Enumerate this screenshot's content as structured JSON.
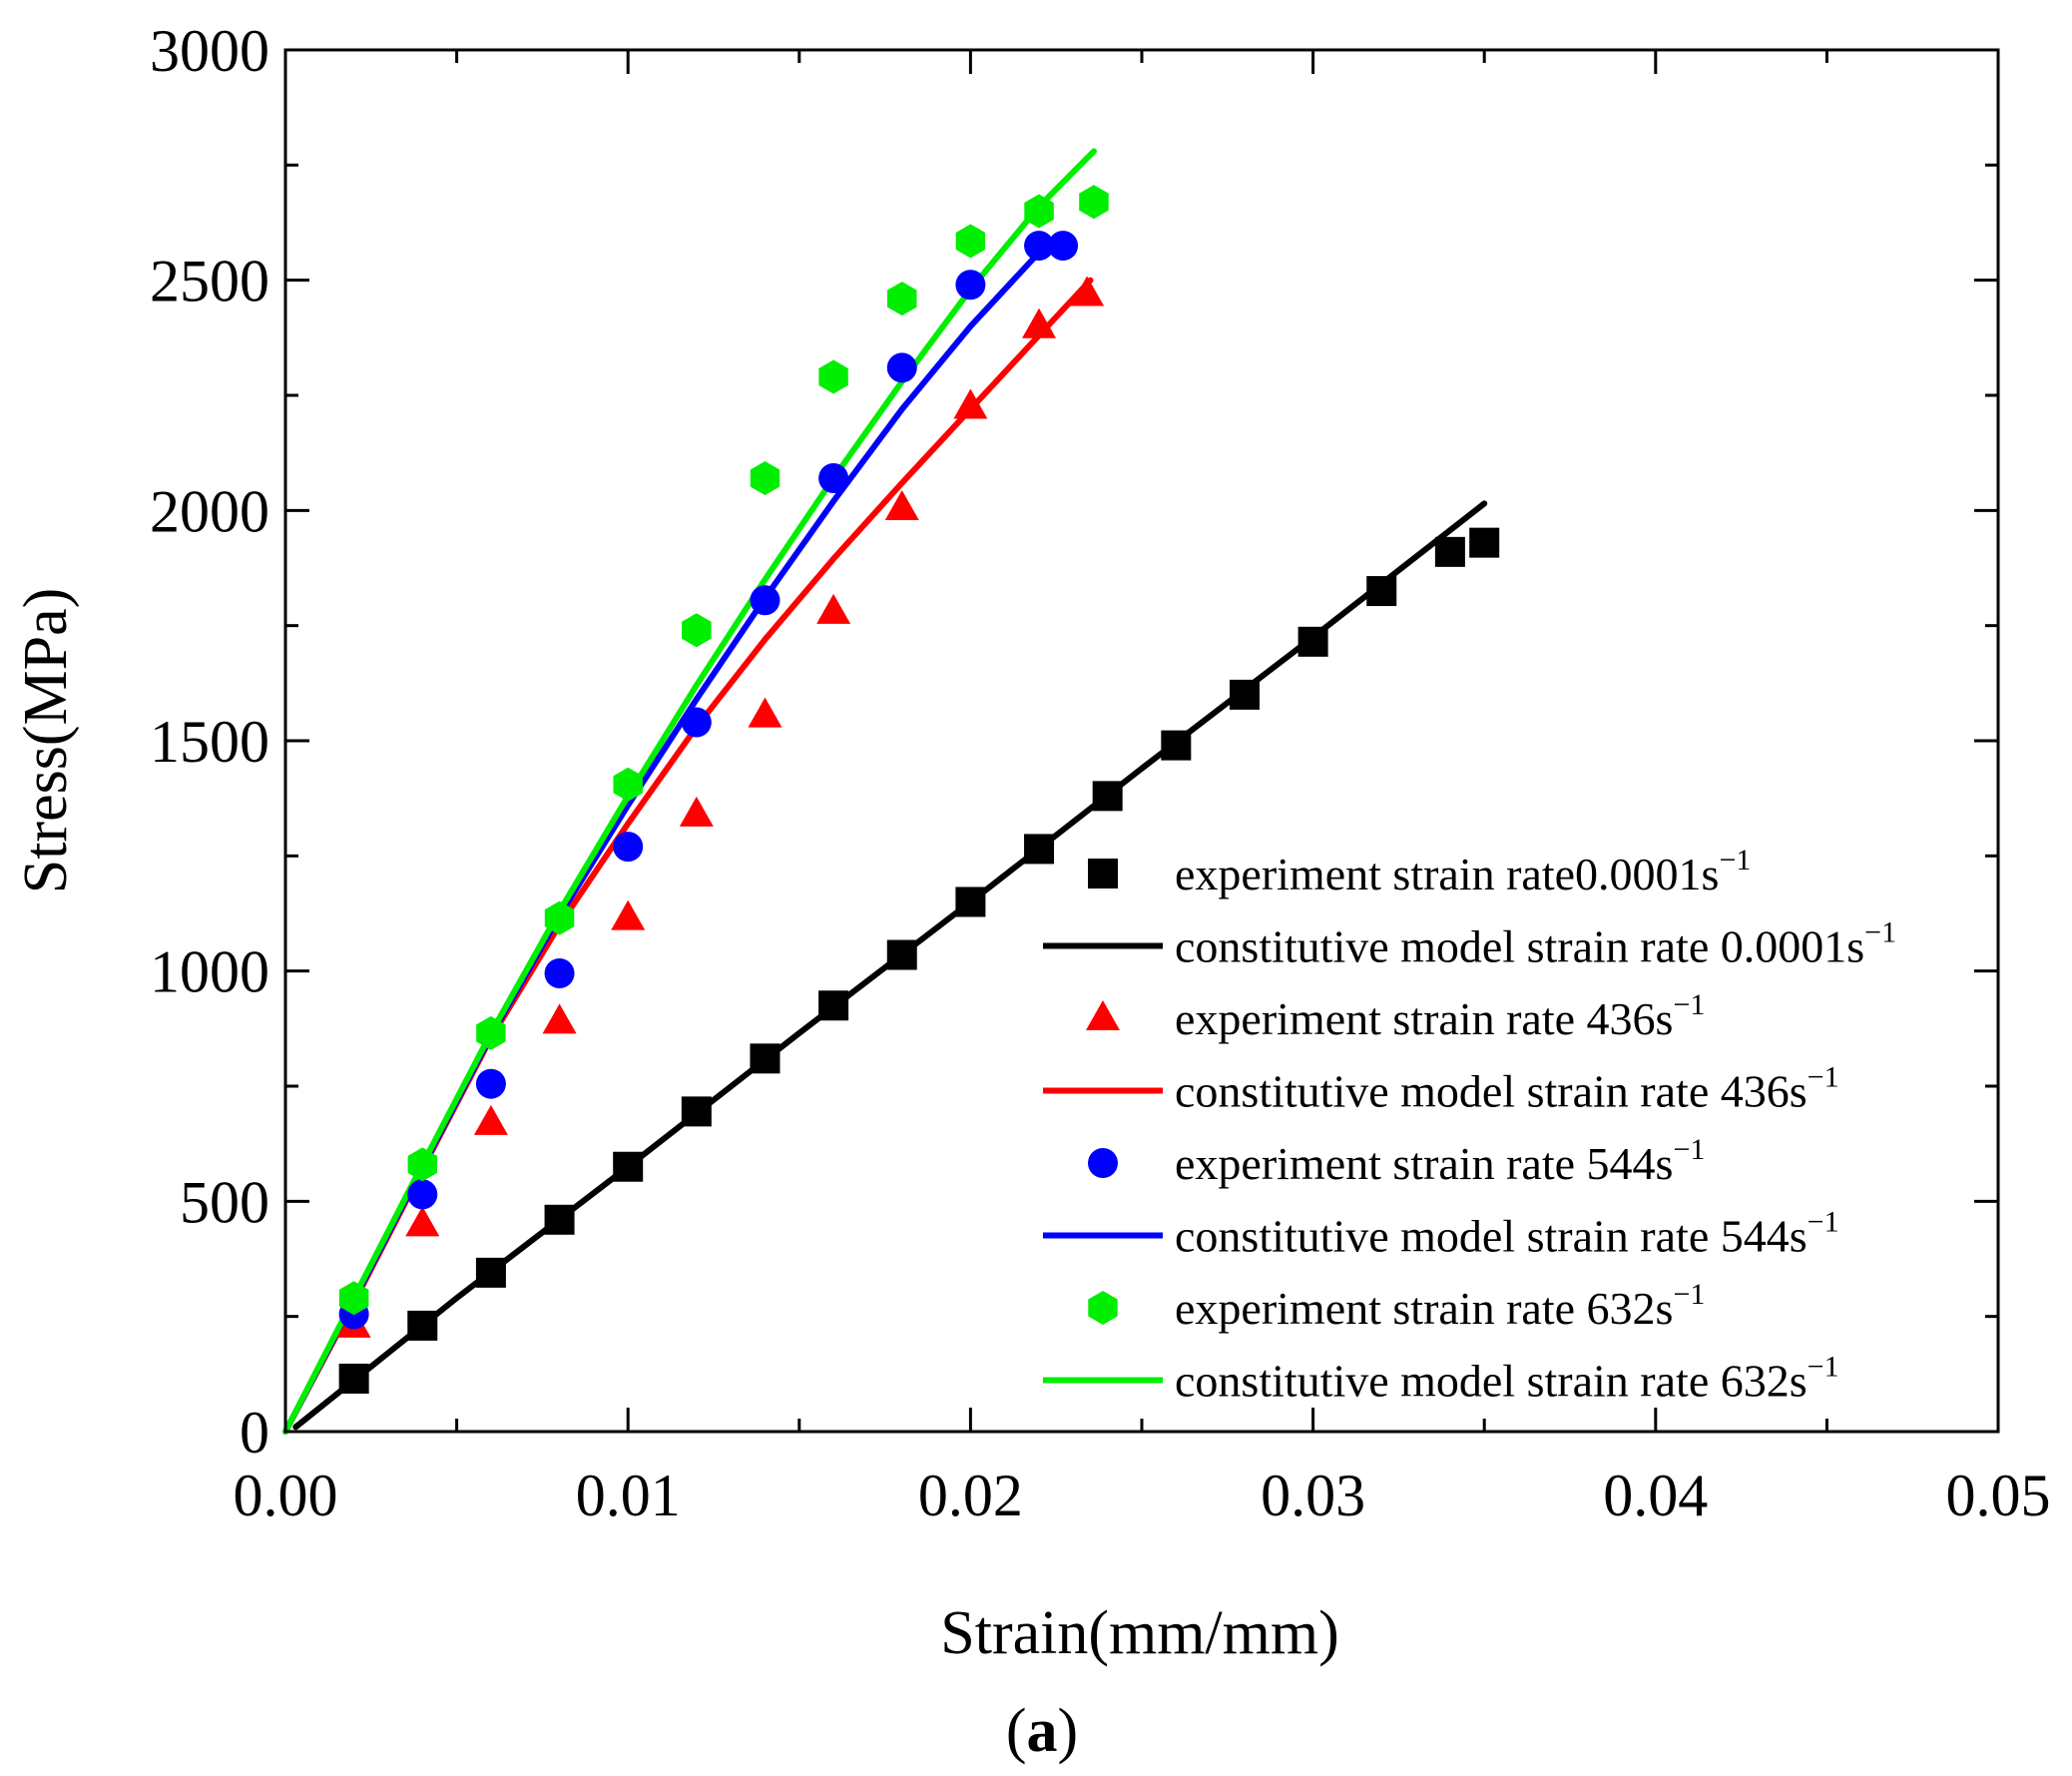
{
  "chart_data": {
    "type": "line",
    "title": "",
    "xlabel": "Strain(mm/mm)",
    "ylabel": "Stress(MPa)",
    "caption_letter": "a",
    "caption_open": "(",
    "caption_close": ")",
    "xlim": [
      0,
      0.05
    ],
    "ylim": [
      0,
      3000
    ],
    "xticks": [
      0,
      0.01,
      0.02,
      0.03,
      0.04,
      0.05
    ],
    "xtick_labels": [
      "0.00",
      "0.01",
      "0.02",
      "0.03",
      "0.04",
      "0.05"
    ],
    "yticks": [
      0,
      500,
      1000,
      1500,
      2000,
      2500,
      3000
    ],
    "ytick_labels": [
      "0",
      "500",
      "1000",
      "1500",
      "2000",
      "2500",
      "3000"
    ],
    "grid": false,
    "legend_position": "bottom-right",
    "series": [
      {
        "name": "experiment strain rate0.0001s",
        "sup": "−1",
        "kind": "scatter",
        "marker": "square",
        "color": "#000000",
        "x": [
          0.002,
          0.004,
          0.006,
          0.008,
          0.01,
          0.012,
          0.014,
          0.016,
          0.018,
          0.02,
          0.022,
          0.024,
          0.026,
          0.028,
          0.03,
          0.032,
          0.034,
          0.035
        ],
        "y": [
          115,
          230,
          345,
          460,
          575,
          695,
          810,
          925,
          1035,
          1150,
          1265,
          1380,
          1490,
          1600,
          1715,
          1825,
          1910,
          1930
        ]
      },
      {
        "name": "constitutive model strain rate 0.0001s",
        "sup": "−1",
        "kind": "line",
        "color": "#000000",
        "x": [
          0.0003,
          0.005,
          0.01,
          0.015,
          0.02,
          0.025,
          0.03,
          0.035
        ],
        "y": [
          10,
          290,
          575,
          865,
          1150,
          1440,
          1725,
          2015
        ]
      },
      {
        "name": "experiment strain rate 436s",
        "sup": "−1",
        "kind": "scatter",
        "marker": "triangle",
        "color": "#ff0000",
        "x": [
          0.002,
          0.004,
          0.006,
          0.008,
          0.01,
          0.012,
          0.014,
          0.016,
          0.018,
          0.02,
          0.022,
          0.0234
        ],
        "y": [
          230,
          450,
          670,
          890,
          1115,
          1340,
          1555,
          1780,
          2005,
          2225,
          2400,
          2470
        ]
      },
      {
        "name": "constitutive model strain rate 436s",
        "sup": "−1",
        "kind": "line",
        "color": "#ff0000",
        "x": [
          0,
          0.002,
          0.004,
          0.006,
          0.008,
          0.01,
          0.012,
          0.014,
          0.016,
          0.018,
          0.02,
          0.022,
          0.0235
        ],
        "y": [
          0,
          280,
          570,
          855,
          1100,
          1320,
          1530,
          1720,
          1895,
          2060,
          2220,
          2380,
          2500
        ]
      },
      {
        "name": "experiment strain rate 544s",
        "sup": "−1",
        "kind": "scatter",
        "marker": "circle",
        "color": "#0000ff",
        "x": [
          0.002,
          0.004,
          0.006,
          0.008,
          0.01,
          0.012,
          0.014,
          0.016,
          0.018,
          0.02,
          0.022,
          0.0227
        ],
        "y": [
          255,
          515,
          755,
          995,
          1270,
          1540,
          1805,
          2070,
          2310,
          2490,
          2575,
          2575
        ]
      },
      {
        "name": "constitutive model strain rate 544s",
        "sup": "−1",
        "kind": "line",
        "color": "#0000ff",
        "x": [
          0,
          0.002,
          0.004,
          0.006,
          0.008,
          0.01,
          0.012,
          0.014,
          0.016,
          0.018,
          0.02,
          0.022
        ],
        "y": [
          0,
          285,
          575,
          860,
          1120,
          1360,
          1590,
          1810,
          2020,
          2220,
          2400,
          2560
        ]
      },
      {
        "name": "experiment strain rate 632s",
        "sup": "−1",
        "kind": "scatter",
        "marker": "hexagon",
        "color": "#00ee00",
        "x": [
          0.002,
          0.004,
          0.006,
          0.008,
          0.01,
          0.012,
          0.014,
          0.016,
          0.018,
          0.02,
          0.022,
          0.0236
        ],
        "y": [
          290,
          580,
          865,
          1115,
          1405,
          1740,
          2070,
          2290,
          2460,
          2585,
          2650,
          2670
        ]
      },
      {
        "name": "constitutive model strain rate 632s",
        "sup": "−1",
        "kind": "line",
        "color": "#00ee00",
        "x": [
          0,
          0.002,
          0.004,
          0.006,
          0.008,
          0.01,
          0.012,
          0.014,
          0.016,
          0.018,
          0.02,
          0.022,
          0.0236
        ],
        "y": [
          0,
          290,
          580,
          865,
          1130,
          1380,
          1620,
          1850,
          2070,
          2280,
          2480,
          2660,
          2780
        ]
      }
    ]
  }
}
